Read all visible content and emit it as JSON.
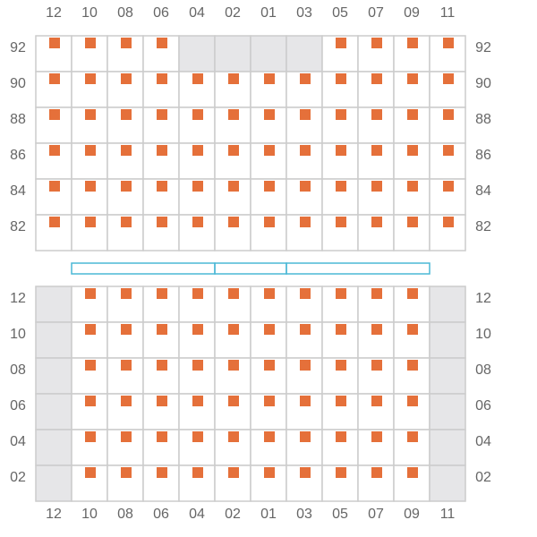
{
  "columns_top": [
    "12",
    "10",
    "08",
    "06",
    "04",
    "02",
    "01",
    "03",
    "05",
    "07",
    "09",
    "11"
  ],
  "columns_bottom": [
    "12",
    "10",
    "08",
    "06",
    "04",
    "02",
    "01",
    "03",
    "05",
    "07",
    "09",
    "11"
  ],
  "top_section": {
    "rows": [
      "92",
      "90",
      "88",
      "86",
      "84",
      "82"
    ],
    "blocked_seats": {
      "92": [
        "04",
        "02",
        "01",
        "03"
      ]
    }
  },
  "bottom_section": {
    "rows": [
      "12",
      "10",
      "08",
      "06",
      "04",
      "02"
    ],
    "blocked_columns": [
      "12",
      "11"
    ]
  }
}
